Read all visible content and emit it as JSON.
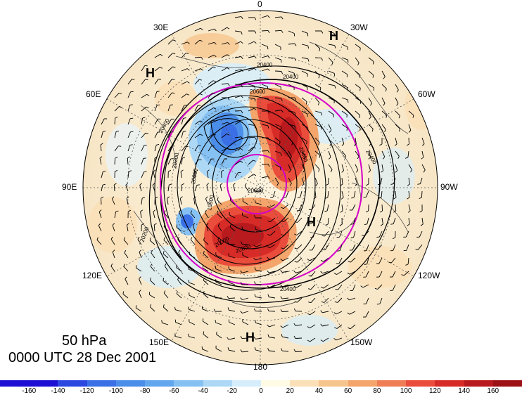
{
  "title": {
    "level": "50 hPa",
    "time": "0000 UTC 28 Dec 2001"
  },
  "longitude_labels": [
    "0",
    "30W",
    "60W",
    "90W",
    "120W",
    "150W",
    "180",
    "150E",
    "120E",
    "90E",
    "60E",
    "30E"
  ],
  "high_markers": [
    "H",
    "H",
    "H",
    "H"
  ],
  "contour_labels": [
    "20400",
    "20400",
    "20400",
    "20400",
    "20400",
    "20200",
    "20000",
    "19800",
    "20200",
    "20400",
    "20600",
    "20800",
    "20000",
    "20600"
  ],
  "colorbar": {
    "ticks": [
      "-160",
      "-140",
      "-120",
      "-100",
      "-80",
      "-60",
      "-40",
      "-20",
      "0",
      "20",
      "40",
      "60",
      "80",
      "100",
      "120",
      "140",
      "160"
    ],
    "colors": [
      "#1d0fd3",
      "#2d48e0",
      "#3a6fe6",
      "#4b8ee9",
      "#62a7ee",
      "#86c1f3",
      "#acd8f6",
      "#d6eefb",
      "#fffbe5",
      "#fbe0b7",
      "#f6c58d",
      "#f3a56c",
      "#ef7d55",
      "#ea4d3b",
      "#d62b27",
      "#b81a1d",
      "#9c1116"
    ]
  },
  "colors": {
    "contour": "#000000",
    "ring": "#d400c8",
    "background": "#fbefd6"
  }
}
